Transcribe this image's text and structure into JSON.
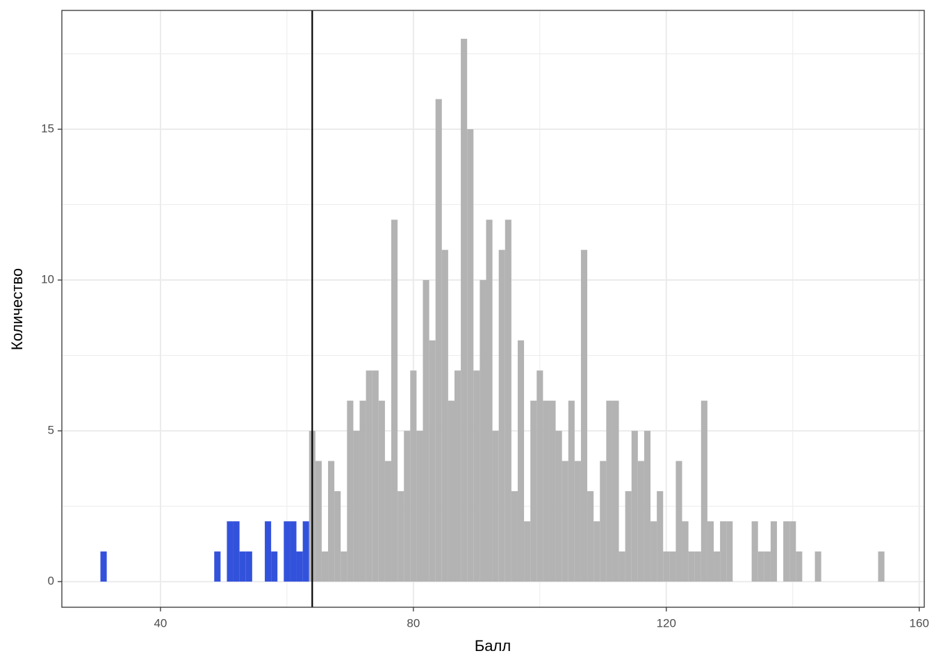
{
  "chart_data": {
    "type": "histogram",
    "x_label": "Балл",
    "y_label": "Количество",
    "bins": [
      30.5,
      31.5,
      32.5,
      33.5,
      34.5,
      35.5,
      36.5,
      37.5,
      38.5,
      39.5,
      40.5,
      41.5,
      42.5,
      43.5,
      44.5,
      45.5,
      46.5,
      47.5,
      48.5,
      49.5,
      50.5,
      51.5,
      52.5,
      53.5,
      54.5,
      55.5,
      56.5,
      57.5,
      58.5,
      59.5,
      60.5,
      61.5,
      62.5,
      63.5,
      64.5,
      65.5,
      66.5,
      67.5,
      68.5,
      69.5,
      70.5,
      71.5,
      72.5,
      73.5,
      74.5,
      75.5,
      76.5,
      77.5,
      78.5,
      79.5,
      80.5,
      81.5,
      82.5,
      83.5,
      84.5,
      85.5,
      86.5,
      87.5,
      88.5,
      89.5,
      90.5,
      91.5,
      92.5,
      93.5,
      94.5,
      95.5,
      96.5,
      97.5,
      98.5,
      99.5,
      100.5,
      101.5,
      102.5,
      103.5,
      104.5,
      105.5,
      106.5,
      107.5,
      108.5,
      109.5,
      110.5,
      111.5,
      112.5,
      113.5,
      114.5,
      115.5,
      116.5,
      117.5,
      118.5,
      119.5,
      120.5,
      121.5,
      122.5,
      123.5,
      124.5,
      125.5,
      126.5,
      127.5,
      128.5,
      129.5,
      130.5,
      131.5,
      132.5,
      133.5,
      134.5,
      135.5,
      136.5,
      137.5,
      138.5,
      139.5,
      140.5,
      141.5,
      142.5,
      143.5,
      144.5,
      145.5,
      146.5,
      147.5,
      148.5,
      149.5,
      150.5,
      151.5,
      152.5,
      153.5,
      154.5
    ],
    "counts": [
      1,
      0,
      0,
      0,
      0,
      0,
      0,
      0,
      0,
      0,
      0,
      0,
      0,
      0,
      0,
      0,
      0,
      0,
      1,
      0,
      2,
      2,
      1,
      1,
      0,
      0,
      2,
      1,
      0,
      2,
      2,
      1,
      2,
      5,
      4,
      1,
      4,
      3,
      1,
      6,
      5,
      6,
      7,
      7,
      6,
      4,
      12,
      3,
      5,
      7,
      5,
      10,
      8,
      16,
      11,
      6,
      7,
      18,
      15,
      7,
      10,
      12,
      5,
      11,
      12,
      3,
      8,
      2,
      6,
      7,
      6,
      6,
      5,
      4,
      6,
      4,
      11,
      3,
      2,
      4,
      6,
      6,
      1,
      3,
      5,
      4,
      5,
      2,
      3,
      1,
      1,
      4,
      2,
      1,
      1,
      6,
      2,
      1,
      2,
      2,
      0,
      0,
      0,
      2,
      1,
      1,
      2,
      0,
      2,
      2,
      1,
      0,
      0,
      1,
      0,
      0,
      0,
      0,
      0,
      0,
      0,
      0,
      0,
      1
    ],
    "color": "#b3b3b3",
    "color_below": "#3352db",
    "vline": 64,
    "vline_color": "#000000",
    "xlim": [
      24.4,
      160.8
    ],
    "ylim": [
      -0.85,
      18.94
    ],
    "xticks": [
      40,
      80,
      120,
      160
    ],
    "yticks": [
      0,
      5,
      10,
      15
    ],
    "x_minor_grid": [
      60,
      100,
      140
    ],
    "y_minor_grid": [
      2.5,
      7.5,
      12.5,
      17.5
    ],
    "grid": true
  }
}
